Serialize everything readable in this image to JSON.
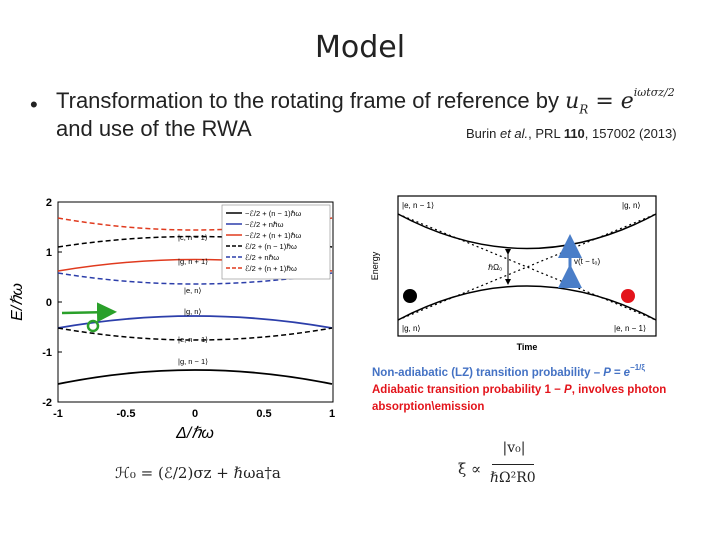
{
  "slide": {
    "title": "Model",
    "bullet_symbol": "•",
    "bullet_line1": "Transformation to the rotating frame of reference by",
    "bullet_formula": "u",
    "bullet_formula_sub": "R",
    "bullet_formula_eq": " = e",
    "bullet_formula_exp": "iωtσz/2",
    "bullet_line2": "and use of the RWA",
    "citation_prefix": "Burin ",
    "citation_etal": "et al.",
    "citation_journal": ", PRL ",
    "citation_volume": "110",
    "citation_rest": ", 157002 (2013)"
  },
  "left_plot": {
    "xlabel": "Δ/ℏω",
    "ylabel": "E/ℏω",
    "x_ticks": [
      "-1",
      "-0.5",
      "0",
      "0.5",
      "1"
    ],
    "y_ticks": [
      "2",
      "1",
      "0",
      "-1",
      "-2"
    ],
    "curve_labels": [
      "|c, n − 1⟩",
      "|g, n + 1⟩",
      "|e, n⟩",
      "|g, n⟩",
      "|e, n − 1⟩",
      "|g, n − 1⟩"
    ],
    "legend": [
      {
        "label": "−ℰ/2 + (n − 1)ℏω",
        "color": "#000000",
        "style": "solid"
      },
      {
        "label": "−ℰ/2 + nℏω",
        "color": "#2c3eaa",
        "style": "solid"
      },
      {
        "label": "−ℰ/2 + (n + 1)ℏω",
        "color": "#e03a1e",
        "style": "solid"
      },
      {
        "label": "ℰ/2 + (n − 1)ℏω",
        "color": "#000000",
        "style": "dashed"
      },
      {
        "label": "ℰ/2 + nℏω",
        "color": "#2c3eaa",
        "style": "dashed"
      },
      {
        "label": "ℰ/2 + (n + 1)ℏω",
        "color": "#e03a1e",
        "style": "dashed"
      }
    ],
    "colors": {
      "arrow": "#2aa02a",
      "circle": "#2aa02a"
    }
  },
  "right_plot": {
    "xlabel": "Time",
    "ylabel": "Energy",
    "state_labels": {
      "top_left": "|e, n − 1⟩",
      "top_right": "|g, n⟩",
      "bottom_left": "|g, n⟩",
      "bottom_right": "|e, n − 1⟩"
    },
    "gap_label": "ℏΩ₀",
    "slope_label": "v(t − t₀)",
    "colors": {
      "left_dot": "#000000",
      "right_dot": "#e3141b",
      "arrow": "#4a7ec8"
    }
  },
  "notes": {
    "line1_text": "Non-adiabatic (LZ) transition probability – ",
    "line1_formula": "P = e",
    "line1_exp": "−1/ξ",
    "line2_text": "Adiabatic transition probability 1 − ",
    "line2_formula": "P",
    "line2_rest": ", involves photon",
    "line3_text": "absorption\\emission"
  },
  "equations": {
    "hamiltonian": "ℋ₀ = (ℰ/2)σz + ℏωa†a",
    "xi_lhs": "ξ ∝",
    "xi_numerator": "|v₀|",
    "xi_denominator": "ℏΩ²R0"
  }
}
